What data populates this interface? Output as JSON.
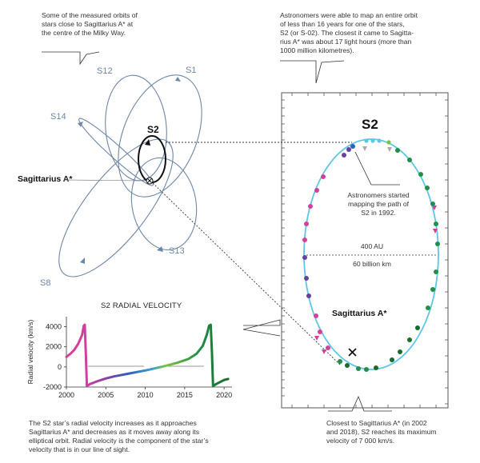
{
  "captions": {
    "top_left": [
      "Some of the measured orbits of",
      "stars close to Sagittarius A* at",
      "the centre of the Milky Way."
    ],
    "top_right": [
      "Astronomers were able to map an entire orbit",
      "of less than 16 years for one of the stars,",
      "S2 (or S-02). The closest it came to Sagitta-",
      "rius A* was about 17 light hours (more than",
      "1000 million kilometres)."
    ],
    "bottom_left": [
      "The S2 star’s radial velocity increases as it approaches",
      "Sagittarius A* and decreases as it moves away along its",
      "elliptical orbit. Radial velocity is the component of the star’s",
      "velocity that is in our line of sight."
    ],
    "bottom_right": [
      "Closest to Sagittarius A* (in 2002",
      "and 2018), S2 reaches its maximum",
      "velocity of 7 000 km/s."
    ]
  },
  "orbit_labels": {
    "s12": "S12",
    "s1": "S1",
    "s14": "S14",
    "s2": "S2",
    "s13": "S13",
    "s8": "S8",
    "sgr": "Sagittarius A*"
  },
  "panel": {
    "title": "S2",
    "mapping_note": [
      "Astronomers started",
      "mapping the path of",
      "S2 in 1992."
    ],
    "scale_au": "400 AU",
    "scale_km": "60 billion km",
    "sgr": "Sagittarius A*"
  },
  "colors": {
    "orbit_blue": "#6f87a6",
    "s2_orbit": "#5ec6e6",
    "magenta": "#d43f9e",
    "purple": "#6a3fa0",
    "blue": "#2f5fb8",
    "green": "#1f8f4a",
    "lightgreen": "#7cc242",
    "darkgreen": "#1b6b2a"
  },
  "chart_data": {
    "type": "line",
    "title": "S2 RADIAL VELOCITY",
    "xlabel": "",
    "ylabel": "Radial velocity (km/s)",
    "xlim": [
      2000,
      2021
    ],
    "ylim": [
      -2000,
      5000
    ],
    "xticks": [
      2000,
      2005,
      2010,
      2015,
      2020
    ],
    "yticks": [
      4000,
      2000,
      0,
      -2000
    ],
    "series": [
      {
        "x": [
          2000,
          2000.5,
          2001,
          2001.5,
          2002,
          2002.2,
          2002.33,
          2002.45,
          2002.6,
          2003,
          2004,
          2005,
          2006,
          2008,
          2010,
          2012,
          2014,
          2015.5,
          2016.5,
          2017.3,
          2017.8,
          2018.1,
          2018.3,
          2018.45,
          2018.6,
          2019,
          2019.5,
          2020,
          2020.5
        ],
        "values": [
          1000,
          1300,
          1700,
          2300,
          3200,
          4100,
          4200,
          1500,
          -1900,
          -1700,
          -1400,
          -1150,
          -950,
          -650,
          -350,
          0,
          400,
          800,
          1300,
          2100,
          3200,
          4100,
          4200,
          1500,
          -1900,
          -1700,
          -1500,
          -1300,
          -1200
        ]
      }
    ]
  }
}
